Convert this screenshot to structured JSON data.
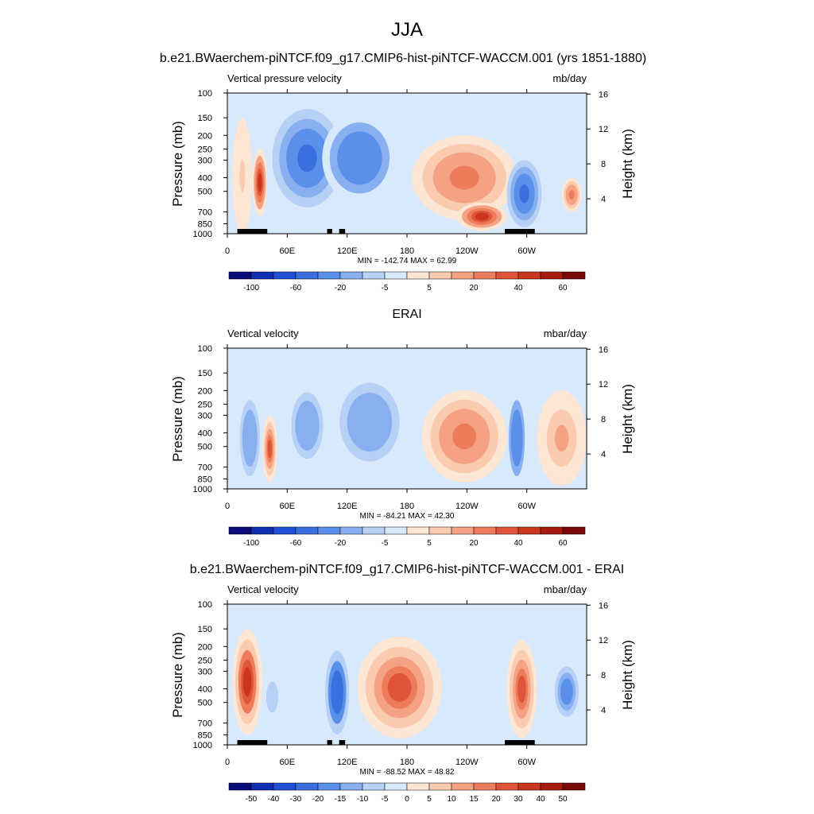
{
  "title": "JJA",
  "panels": [
    {
      "title": "b.e21.BWaerchem-piNTCF.f09_g17.CMIP6-hist-piNTCF-WACCM.001 (yrs 1851-1880)",
      "left_label": "Vertical pressure velocity",
      "right_label": "mb/day",
      "ylabel": "Pressure (mb)",
      "y2label": "Height (km)",
      "stats": "MIN = -142.74  MAX =  62.99",
      "colorbar_labels": [
        "-100",
        "-60",
        "-20",
        "-5",
        "5",
        "20",
        "40",
        "60"
      ]
    },
    {
      "title": "ERAI",
      "left_label": "Vertical velocity",
      "right_label": "mbar/day",
      "ylabel": "Pressure (mb)",
      "y2label": "Height (km)",
      "stats": "MIN = -84.21  MAX = 42.30",
      "colorbar_labels": [
        "-100",
        "-60",
        "-20",
        "-5",
        "5",
        "20",
        "40",
        "60"
      ]
    },
    {
      "title": "b.e21.BWaerchem-piNTCF.f09_g17.CMIP6-hist-piNTCF-WACCM.001 - ERAI",
      "left_label": "Vertical velocity",
      "right_label": "mbar/day",
      "ylabel": "Pressure (mb)",
      "y2label": "Height (km)",
      "stats": "MIN = -88.52  MAX = 48.82",
      "colorbar_labels": [
        "-50",
        "-40",
        "-30",
        "-20",
        "-15",
        "-10",
        "-5",
        "0",
        "5",
        "10",
        "15",
        "20",
        "30",
        "40",
        "50"
      ]
    }
  ],
  "chart_data": [
    {
      "type": "heatmap",
      "title": "b.e21.BWaerchem-piNTCF.f09_g17.CMIP6-hist-piNTCF-WACCM.001 (yrs 1851-1880)",
      "xlabel": "",
      "ylabel": "Pressure (mb)",
      "y2label": "Height (km)",
      "x_ticks": [
        "0",
        "60E",
        "120E",
        "180",
        "120W",
        "60W"
      ],
      "x_tick_values": [
        0,
        60,
        120,
        180,
        240,
        300
      ],
      "xlim": [
        0,
        360
      ],
      "y_ticks": [
        "100",
        "150",
        "200",
        "250",
        "300",
        "400",
        "500",
        "700",
        "850",
        "1000"
      ],
      "y_tick_values": [
        100,
        150,
        200,
        250,
        300,
        400,
        500,
        700,
        850,
        1000
      ],
      "ylim": [
        1000,
        100
      ],
      "y_scale": "log",
      "y2_ticks": [
        "4",
        "8",
        "12",
        "16"
      ],
      "y2_tick_values": [
        4,
        8,
        12,
        16
      ],
      "min": -142.74,
      "max": 62.99,
      "levels": [
        -100,
        -80,
        -60,
        -40,
        -20,
        -10,
        -5,
        0,
        5,
        10,
        20,
        30,
        40,
        50,
        60
      ],
      "fill_colors": [
        "#0a0a78",
        "#0f2fb0",
        "#1f4fd6",
        "#3a6fe0",
        "#5a90ea",
        "#88b0f0",
        "#b6d0f6",
        "#d8e9fb",
        "#fde6d4",
        "#fbcbb0",
        "#f5a284",
        "#ed7c5a",
        "#e0553a",
        "#c9351d",
        "#a61a0f",
        "#7a0808"
      ],
      "features": [
        {
          "lon": [
            5,
            25
          ],
          "p": [
            150,
            1000
          ],
          "value": 5
        },
        {
          "lon": [
            25,
            40
          ],
          "p": [
            250,
            750
          ],
          "value": 40
        },
        {
          "lon": [
            45,
            115
          ],
          "p": [
            130,
            650
          ],
          "value": -50
        },
        {
          "lon": [
            95,
            170
          ],
          "p": [
            140,
            600
          ],
          "value": -40
        },
        {
          "lon": [
            185,
            290
          ],
          "p": [
            200,
            800
          ],
          "value": 20
        },
        {
          "lon": [
            230,
            280
          ],
          "p": [
            600,
            950
          ],
          "value": 40
        },
        {
          "lon": [
            280,
            315
          ],
          "p": [
            300,
            900
          ],
          "value": -50
        },
        {
          "lon": [
            335,
            355
          ],
          "p": [
            400,
            700
          ],
          "value": 20
        }
      ],
      "topography": [
        [
          10,
          40
        ],
        [
          100,
          105
        ],
        [
          112,
          118
        ],
        [
          278,
          308
        ]
      ]
    },
    {
      "type": "heatmap",
      "title": "ERAI",
      "xlabel": "",
      "ylabel": "Pressure (mb)",
      "y2label": "Height (km)",
      "x_ticks": [
        "0",
        "60E",
        "120E",
        "180",
        "120W",
        "60W"
      ],
      "x_tick_values": [
        0,
        60,
        120,
        180,
        240,
        300
      ],
      "xlim": [
        0,
        360
      ],
      "y_ticks": [
        "100",
        "150",
        "200",
        "250",
        "300",
        "400",
        "500",
        "700",
        "850",
        "1000"
      ],
      "y_tick_values": [
        100,
        150,
        200,
        250,
        300,
        400,
        500,
        700,
        850,
        1000
      ],
      "ylim": [
        1000,
        100
      ],
      "y_scale": "log",
      "y2_ticks": [
        "4",
        "8",
        "12",
        "16"
      ],
      "y2_tick_values": [
        4,
        8,
        12,
        16
      ],
      "min": -84.21,
      "max": 42.3,
      "levels": [
        -100,
        -80,
        -60,
        -40,
        -20,
        -10,
        -5,
        0,
        5,
        10,
        20,
        30,
        40,
        50,
        60
      ],
      "fill_colors": [
        "#0a0a78",
        "#0f2fb0",
        "#1f4fd6",
        "#3a6fe0",
        "#5a90ea",
        "#88b0f0",
        "#b6d0f6",
        "#d8e9fb",
        "#fde6d4",
        "#fbcbb0",
        "#f5a284",
        "#ed7c5a",
        "#e0553a",
        "#c9351d",
        "#a61a0f",
        "#7a0808"
      ],
      "features": [
        {
          "lon": [
            10,
            35
          ],
          "p": [
            200,
            950
          ],
          "value": -20
        },
        {
          "lon": [
            35,
            50
          ],
          "p": [
            300,
            900
          ],
          "value": 30
        },
        {
          "lon": [
            60,
            100
          ],
          "p": [
            180,
            700
          ],
          "value": -20
        },
        {
          "lon": [
            105,
            180
          ],
          "p": [
            150,
            750
          ],
          "value": -20
        },
        {
          "lon": [
            195,
            280
          ],
          "p": [
            200,
            900
          ],
          "value": 20
        },
        {
          "lon": [
            280,
            300
          ],
          "p": [
            200,
            950
          ],
          "value": -40
        },
        {
          "lon": [
            310,
            360
          ],
          "p": [
            200,
            950
          ],
          "value": 10
        }
      ],
      "topography": []
    },
    {
      "type": "heatmap",
      "title": "b.e21.BWaerchem-piNTCF.f09_g17.CMIP6-hist-piNTCF-WACCM.001 - ERAI",
      "xlabel": "",
      "ylabel": "Pressure (mb)",
      "y2label": "Height (km)",
      "x_ticks": [
        "0",
        "60E",
        "120E",
        "180",
        "120W",
        "60W"
      ],
      "x_tick_values": [
        0,
        60,
        120,
        180,
        240,
        300
      ],
      "xlim": [
        0,
        360
      ],
      "y_ticks": [
        "100",
        "150",
        "200",
        "250",
        "300",
        "400",
        "500",
        "700",
        "850",
        "1000"
      ],
      "y_tick_values": [
        100,
        150,
        200,
        250,
        300,
        400,
        500,
        700,
        850,
        1000
      ],
      "ylim": [
        1000,
        100
      ],
      "y_scale": "log",
      "y2_ticks": [
        "4",
        "8",
        "12",
        "16"
      ],
      "y2_tick_values": [
        4,
        8,
        12,
        16
      ],
      "min": -88.52,
      "max": 48.82,
      "levels": [
        -50,
        -40,
        -30,
        -20,
        -15,
        -10,
        -5,
        0,
        5,
        10,
        15,
        20,
        30,
        40,
        50
      ],
      "fill_colors": [
        "#0a0a78",
        "#0f2fb0",
        "#1f4fd6",
        "#3a6fe0",
        "#5a90ea",
        "#88b0f0",
        "#b6d0f6",
        "#d8e9fb",
        "#fde6d4",
        "#fbcbb0",
        "#f5a284",
        "#ed7c5a",
        "#e0553a",
        "#c9351d",
        "#a61a0f",
        "#7a0808"
      ],
      "features": [
        {
          "lon": [
            5,
            35
          ],
          "p": [
            150,
            850
          ],
          "value": 30
        },
        {
          "lon": [
            35,
            55
          ],
          "p": [
            300,
            700
          ],
          "value": -10
        },
        {
          "lon": [
            95,
            125
          ],
          "p": [
            180,
            1000
          ],
          "value": -30
        },
        {
          "lon": [
            130,
            215
          ],
          "p": [
            170,
            900
          ],
          "value": 20
        },
        {
          "lon": [
            280,
            310
          ],
          "p": [
            180,
            900
          ],
          "value": 20
        },
        {
          "lon": [
            325,
            355
          ],
          "p": [
            250,
            700
          ],
          "value": -20
        }
      ],
      "topography": [
        [
          10,
          40
        ],
        [
          100,
          105
        ],
        [
          112,
          118
        ],
        [
          278,
          308
        ]
      ]
    }
  ]
}
